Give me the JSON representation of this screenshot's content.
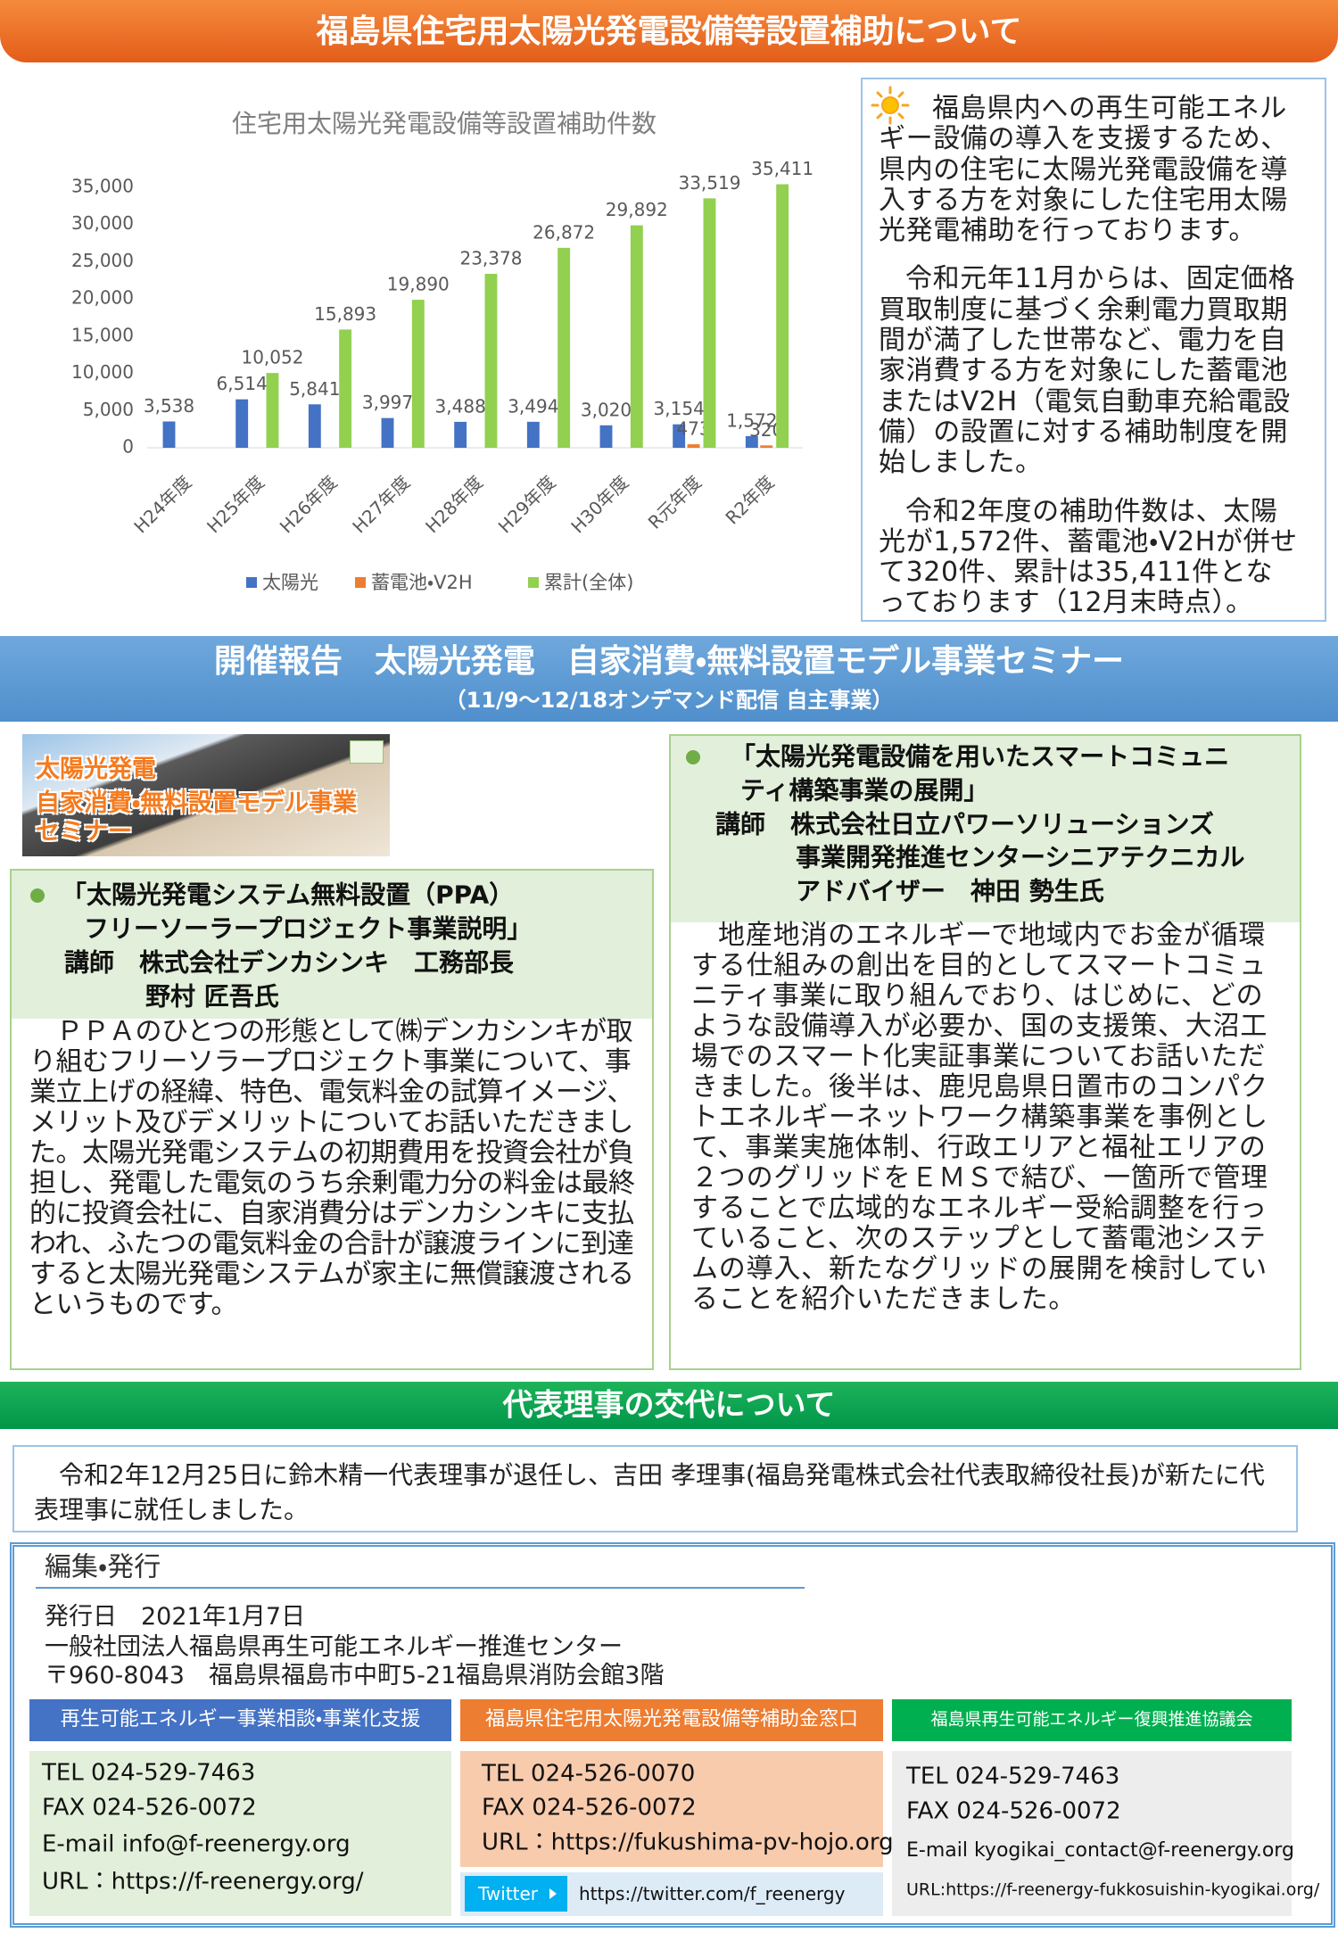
{
  "header": {
    "title": "福島県住宅用太陽光発電設備等設置補助について"
  },
  "chart_data": {
    "type": "bar",
    "title": "住宅用太陽光発電設備等設置補助件数",
    "categories": [
      "H24年度",
      "H25年度",
      "H26年度",
      "H27年度",
      "H28年度",
      "H29年度",
      "H30年度",
      "R元年度",
      "R2年度"
    ],
    "series": [
      {
        "name": "太陽光",
        "color": "#4472c4",
        "values": [
          3538,
          6514,
          5841,
          3997,
          3488,
          3494,
          3020,
          3154,
          1572
        ],
        "value_labels": [
          "3,538",
          "6,514",
          "5,841",
          "3,997",
          "3,488",
          "3,494",
          "3,020",
          "3,154",
          "1,572"
        ]
      },
      {
        "name": "蓄電池・V2H",
        "color": "#ed7d31",
        "values": [
          null,
          null,
          null,
          null,
          null,
          null,
          null,
          473,
          320
        ]
      },
      {
        "name": "累計(全体)",
        "color": "#92d050",
        "values": [
          null,
          10052,
          15893,
          19890,
          23378,
          26872,
          29892,
          33519,
          35411
        ],
        "value_labels": [
          null,
          "10,052",
          "15,893",
          "19,890",
          "23,378",
          "26,872",
          "29,892",
          "33,519",
          "35,411"
        ]
      }
    ],
    "ylim": [
      0,
      35000
    ],
    "yticks": [
      0,
      {
        "value": 5000,
        "label": "5,000"
      },
      {
        "value": 10000,
        "label": "10,000"
      },
      {
        "value": 15000,
        "label": "15,000"
      },
      {
        "value": 20000,
        "label": "20,000"
      },
      {
        "value": 25000,
        "label": "25,000"
      },
      {
        "value": 30000,
        "label": "30,000"
      },
      {
        "value": 35000,
        "label": "35,000"
      }
    ],
    "grid": false,
    "legend": "bottom"
  },
  "intro": {
    "paragraphs": [
      "福島県内への再生可能エネルギー設備の導入を支援するため、県内の住宅に太陽光発電設備を導入する方を対象にした住宅用太陽光発電補助を行っております。",
      "令和元年11月からは、固定価格買取制度に基づく余剰電力買取期間が満了した世帯など、電力を自家消費する方を対象にした蓄電池またはV2H（電気自動車充給電設備）の設置に対する補助制度を開始しました。",
      "令和2年度の補助件数は、太陽光が1,572件、蓄電池・V2Hが併せて320件、累計は35,411件となっております（12月末時点）。"
    ]
  },
  "seminar": {
    "title": "開催報告　太陽光発電　自家消費・無料設置モデル事業セミナー",
    "subtitle": "（11/9～12/18オンデマンド配信  自主事業）",
    "image_caption": [
      "太陽光発電",
      "自家消費・無料設置モデル事業",
      "セミナー"
    ],
    "talks": [
      {
        "heading_lines": [
          "「太陽光発電システム無料設置（PPA）",
          "フリーソーラープロジェクト事業説明」",
          "講師　株式会社デンカシンキ　工務部長",
          "野村 匠吾氏"
        ],
        "body": "ＰＰＡのひとつの形態として㈱デンカシンキが取り組むフリーソラープロジェクト事業について、事業立上げの経緯、特色、電気料金の試算イメージ、メリット及びデメリットについてお話いただきました。太陽光発電システムの初期費用を投資会社が負担し、発電した電気のうち余剰電力分の料金は最終的に投資会社に、自家消費分はデンカシンキに支払われ、ふたつの電気料金の合計が譲渡ラインに到達すると太陽光発電システムが家主に無償譲渡されるというものです。"
      },
      {
        "heading_lines": [
          "「太陽光発電設備を用いたスマートコミュニ",
          "ティ構築事業の展開」",
          "講師　株式会社日立パワーソリューションズ",
          "事業開発推進センターシニアテクニカル",
          "アドバイザー　神田 勢生氏"
        ],
        "body": "地産地消のエネルギーで地域内でお金が循環する仕組みの創出を目的としてスマートコミュニティ事業に取り組んでおり、はじめに、どのような設備導入が必要か、国の支援策、大沼工場でのスマート化実証事業についてお話いただきました。後半は、鹿児島県日置市のコンパクトエネルギーネットワーク構築事業を事例として、事業実施体制、行政エリアと福祉エリアの２つのグリッドをＥＭＳで結び、一箇所で管理することで広域的なエネルギー受給調整を行っていること、次のステップとして蓄電池システムの導入、新たなグリッドの展開を検討していることを紹介いただきました。"
      }
    ]
  },
  "board": {
    "title": "代表理事の交代について",
    "body": "令和2年12月25日に鈴木精一代表理事が退任し、吉田 孝理事(福島発電株式会社代表取締役社長)が新たに代表理事に就任しました。"
  },
  "publisher": {
    "heading": "編集・発行",
    "lines": [
      "発行日　2021年1月7日",
      "一般社団法人福島県再生可能エネルギー推進センター",
      "〒960-8043　福島県福島市中町5-21福島県消防会館3階"
    ],
    "contacts": [
      {
        "title": "再生可能エネルギー事業相談・事業化支援",
        "lines": [
          "TEL 024-529-7463",
          "FAX 024-526-0072",
          "E-mail  info@f-reenergy.org",
          "URL：https://f-reenergy.org/"
        ]
      },
      {
        "title": "福島県住宅用太陽光発電設備等補助金窓口",
        "lines": [
          "TEL 024-526-0070",
          "FAX 024-526-0072",
          "URL：https://fukushima-pv-hojo.org/"
        ],
        "twitter_label": "Twitter",
        "twitter_url": "https://twitter.com/f_reenergy"
      },
      {
        "title": "福島県再生可能エネルギー復興推進協議会",
        "lines": [
          "TEL 024-529-7463",
          "FAX 024-526-0072",
          "E-mail  kyogikai_contact@f-reenergy.org",
          "URL:https://f-reenergy-fukkosuishin-kyogikai.org/"
        ]
      }
    ]
  }
}
